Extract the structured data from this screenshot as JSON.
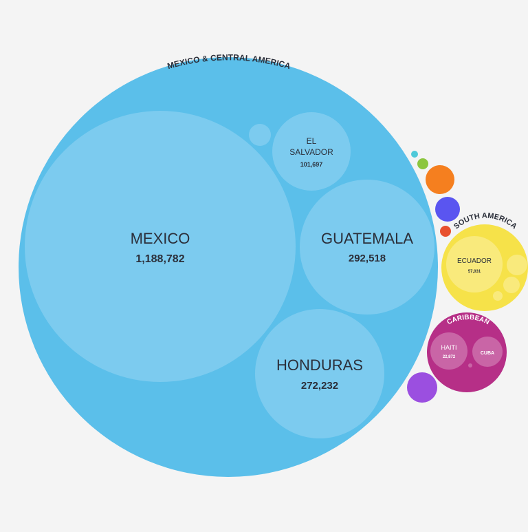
{
  "chart_data": {
    "type": "bubble",
    "groups": [
      {
        "id": "mca",
        "name": "MEXICO & CENTRAL AMERICA",
        "color": "#5bbfea",
        "child_color": "#7ccbef",
        "children": [
          {
            "id": "mexico",
            "name": "MEXICO",
            "value": 1188782,
            "value_label": "1,188,782"
          },
          {
            "id": "guatemala",
            "name": "GUATEMALA",
            "value": 292518,
            "value_label": "292,518"
          },
          {
            "id": "honduras",
            "name": "HONDURAS",
            "value": 272232,
            "value_label": "272,232"
          },
          {
            "id": "elsalvador",
            "name": "EL SALVADOR",
            "name_lines": [
              "EL",
              "SALVADOR"
            ],
            "value": 101697,
            "value_label": "101,697"
          },
          {
            "id": "mca-small-1",
            "name": "",
            "value": null,
            "value_label": ""
          }
        ]
      },
      {
        "id": "sa",
        "name": "SOUTH AMERICA",
        "color": "#f6e249",
        "child_color": "#f9ea7c",
        "children": [
          {
            "id": "ecuador",
            "name": "ECUADOR",
            "value": 57031,
            "value_label": "57,031"
          }
        ]
      },
      {
        "id": "car",
        "name": "CARIBBEAN",
        "color": "#b62f87",
        "child_color": "#c965a6",
        "children": [
          {
            "id": "haiti",
            "name": "HAITI",
            "value": 22872,
            "value_label": "22,872"
          },
          {
            "id": "cuba",
            "name": "CUBA",
            "value": null,
            "value_label": ""
          }
        ]
      }
    ],
    "unlabeled_regions": [
      {
        "id": "cyan",
        "color": "#4fc9d9"
      },
      {
        "id": "green",
        "color": "#8cc63f"
      },
      {
        "id": "orange",
        "color": "#f57f1f"
      },
      {
        "id": "blue",
        "color": "#5a55f0"
      },
      {
        "id": "red",
        "color": "#e8502e"
      },
      {
        "id": "purple",
        "color": "#9b4fe0"
      }
    ]
  }
}
